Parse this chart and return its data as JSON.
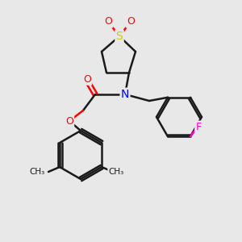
{
  "bg_color": "#e8e8e8",
  "bond_color": "#1a1a1a",
  "bond_width": 1.8,
  "atom_colors": {
    "O": "#ff0000",
    "N": "#0000ff",
    "S": "#cccc00",
    "F": "#ff00cc",
    "C": "#1a1a1a"
  },
  "font_size": 9,
  "figsize": [
    3.0,
    3.0
  ],
  "dpi": 100
}
